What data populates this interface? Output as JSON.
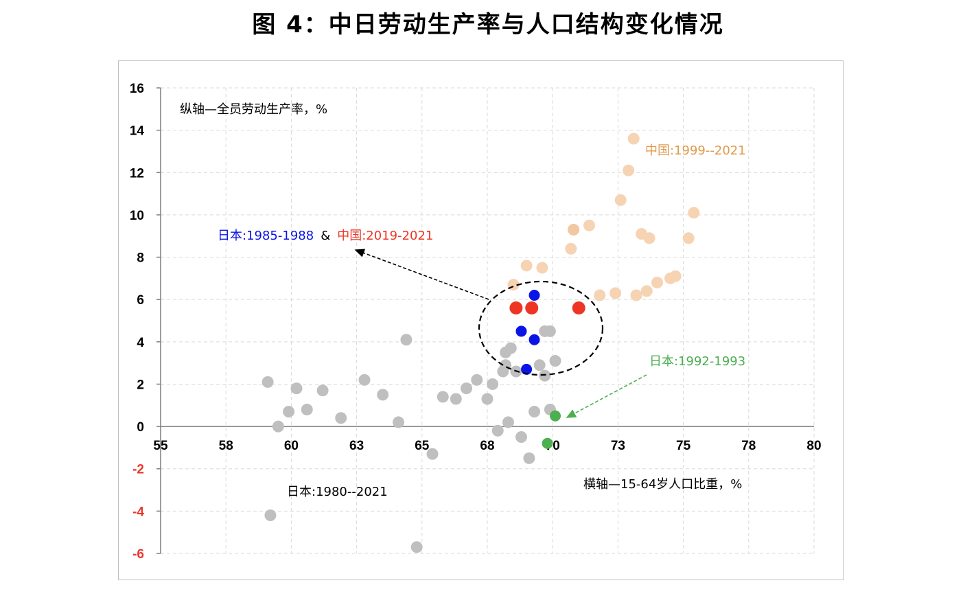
{
  "title": "图 4：中日劳动生产率与人口结构变化情况",
  "chart_data": {
    "type": "scatter",
    "title": "图 4：中日劳动生产率与人口结构变化情况",
    "ylabel": "纵轴—全员劳动生产率，%",
    "xlabel": "横轴—15-64岁人口比重，%",
    "xlim": [
      55,
      80
    ],
    "ylim": [
      -6,
      16
    ],
    "x_tick_labels": [
      "55",
      "58",
      "60",
      "63",
      "65",
      "68",
      "70",
      "73",
      "75",
      "78",
      "80"
    ],
    "y_tick_labels": [
      "-6",
      "-4",
      "-2",
      "0",
      "2",
      "4",
      "6",
      "8",
      "10",
      "12",
      "14",
      "16"
    ],
    "grid": true,
    "colors": {
      "japan_all": "#bfbfbf",
      "china": "#f6d3b3",
      "china_dark": "#efc296",
      "blue": "#0a14e6",
      "red": "#ee3524",
      "green": "#4caf50",
      "negative_tick": "#e8392f",
      "china_label": "#e09a4c",
      "green_label": "#4caf50"
    },
    "series": [
      {
        "name": "日本:1980--2021",
        "points": [
          [
            59.1,
            2.1
          ],
          [
            59.5,
            0
          ],
          [
            59.9,
            0.7
          ],
          [
            60.2,
            1.8
          ],
          [
            60.6,
            0.8
          ],
          [
            61.2,
            1.7
          ],
          [
            61.9,
            0.4
          ],
          [
            62.8,
            2.2
          ],
          [
            63.5,
            1.5
          ],
          [
            64.1,
            0.2
          ],
          [
            64.4,
            4.1
          ],
          [
            65.4,
            -1.3
          ],
          [
            65.8,
            1.4
          ],
          [
            66.3,
            1.3
          ],
          [
            66.7,
            1.8
          ],
          [
            67.1,
            2.2
          ],
          [
            67.5,
            1.3
          ],
          [
            67.7,
            2
          ],
          [
            67.9,
            -0.2
          ],
          [
            68.3,
            0.2
          ],
          [
            68.2,
            3.5
          ],
          [
            68.4,
            3.7
          ],
          [
            68.1,
            2.6
          ],
          [
            68.2,
            2.9
          ],
          [
            68.6,
            2.6
          ],
          [
            68.8,
            -0.5
          ],
          [
            69.1,
            -1.5
          ],
          [
            69.3,
            0.7
          ],
          [
            69.5,
            2.9
          ],
          [
            69.7,
            2.4
          ],
          [
            69.9,
            0.8
          ],
          [
            70.1,
            3.1
          ],
          [
            69.7,
            4.5
          ],
          [
            69.9,
            4.5
          ],
          [
            59.2,
            -4.2
          ],
          [
            64.8,
            -5.7
          ]
        ]
      },
      {
        "name": "中国:1999--2021",
        "points": [
          [
            68.5,
            6.7
          ],
          [
            69,
            7.6
          ],
          [
            69.6,
            7.5
          ],
          [
            70.8,
            9.3
          ],
          [
            71.4,
            9.5
          ],
          [
            70.7,
            8.4
          ],
          [
            71.8,
            6.2
          ],
          [
            72.4,
            6.3
          ],
          [
            72.6,
            10.7
          ],
          [
            72.9,
            12.1
          ],
          [
            73.1,
            13.6
          ],
          [
            73.2,
            6.2
          ],
          [
            73.4,
            9.1
          ],
          [
            73.6,
            6.4
          ],
          [
            73.7,
            8.9
          ],
          [
            74,
            6.8
          ],
          [
            74.5,
            7.0
          ],
          [
            74.7,
            7.1
          ],
          [
            75.2,
            8.9
          ],
          [
            75.4,
            10.1
          ]
        ]
      },
      {
        "name": "日本:1985-1988",
        "points": [
          [
            69.3,
            6.2
          ],
          [
            68.8,
            4.5
          ],
          [
            69.3,
            4.1
          ],
          [
            69.0,
            2.7
          ]
        ]
      },
      {
        "name": "中国:2019-2021",
        "points": [
          [
            68.6,
            5.6
          ],
          [
            69.2,
            5.6
          ],
          [
            71.0,
            5.6
          ]
        ]
      },
      {
        "name": "日本:1992-1993",
        "points": [
          [
            70.1,
            0.5
          ],
          [
            69.8,
            -0.8
          ]
        ]
      }
    ],
    "annotations": {
      "y_axis_note": "纵轴—全员劳动生产率，%",
      "x_axis_note": "横轴—15-64岁人口比重，%",
      "china_range": "中国:1999--2021",
      "japan_blue": "日本:1985-1988",
      "ampersand": "&",
      "china_red": "中国:2019-2021",
      "japan_green": "日本:1992-1993",
      "japan_all": "日本:1980--2021"
    }
  }
}
